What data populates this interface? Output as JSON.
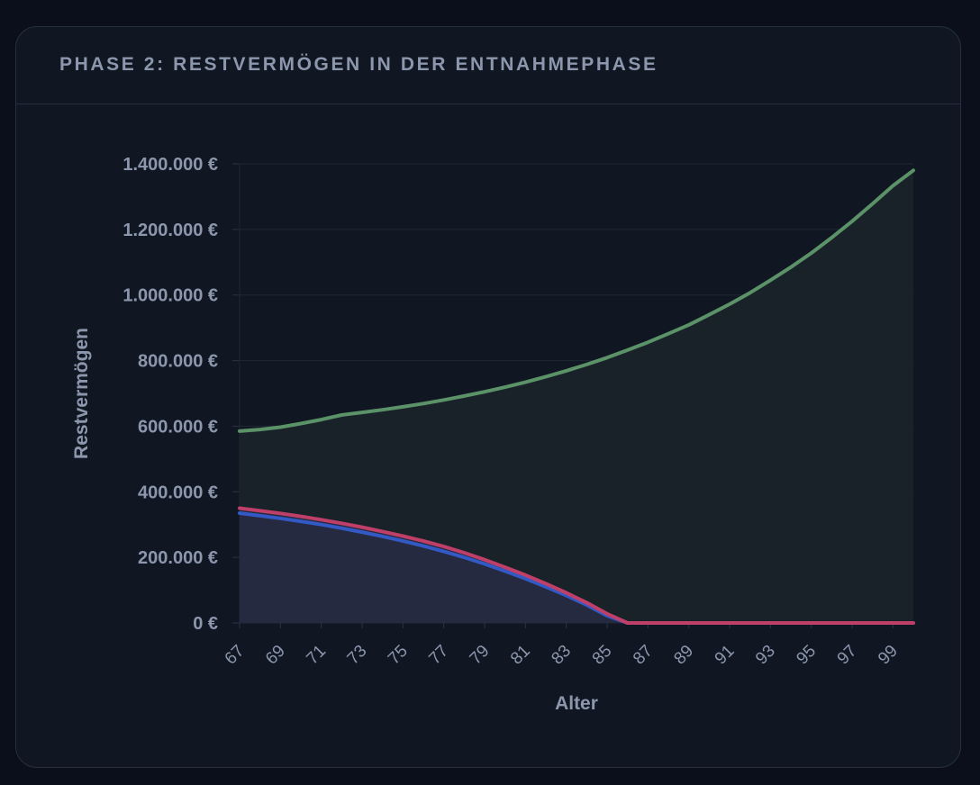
{
  "card": {
    "title": "PHASE 2: RESTVERMÖGEN IN DER ENTNAHMEPHASE"
  },
  "chart_data": {
    "type": "area",
    "title": "",
    "xlabel": "Alter",
    "ylabel": "Restvermögen",
    "xlim": [
      67,
      100
    ],
    "ylim": [
      0,
      1400000
    ],
    "y_ticks": [
      0,
      200000,
      400000,
      600000,
      800000,
      1000000,
      1200000,
      1400000
    ],
    "y_tick_labels": [
      "0 €",
      "200.000 €",
      "400.000 €",
      "600.000 €",
      "800.000 €",
      "1.000.000 €",
      "1.200.000 €",
      "1.400.000 €"
    ],
    "x_tick_labels": [
      "67",
      "69",
      "71",
      "73",
      "75",
      "77",
      "79",
      "81",
      "83",
      "85",
      "87",
      "89",
      "91",
      "93",
      "95",
      "97",
      "99"
    ],
    "grid": true,
    "legend": "none",
    "x": [
      67,
      68,
      69,
      70,
      71,
      72,
      73,
      74,
      75,
      76,
      77,
      78,
      79,
      80,
      81,
      82,
      83,
      84,
      85,
      86,
      87,
      88,
      89,
      90,
      91,
      92,
      93,
      94,
      95,
      96,
      97,
      98,
      99,
      100
    ],
    "series": [
      {
        "color": "#5b9268",
        "fill": "#1a2429",
        "values": [
          585000,
          590000,
          597000,
          608000,
          620000,
          634000,
          642000,
          650000,
          659000,
          669000,
          680000,
          692000,
          705000,
          719000,
          734000,
          751000,
          769000,
          788000,
          809000,
          832000,
          856000,
          882000,
          909000,
          940000,
          972000,
          1007000,
          1045000,
          1085000,
          1128000,
          1175000,
          1225000,
          1278000,
          1333000,
          1380000
        ]
      },
      {
        "color": "#3359c4",
        "fill": "#272a40",
        "values": [
          335000,
          327000,
          319000,
          310000,
          300000,
          289000,
          277000,
          264000,
          250000,
          235000,
          218000,
          200000,
          180000,
          158000,
          135000,
          110000,
          84000,
          55000,
          22000,
          0,
          0,
          0,
          0,
          0,
          0,
          0,
          0,
          0,
          0,
          0,
          0,
          0,
          0,
          0
        ]
      },
      {
        "color": "#bf3f68",
        "fill": "#272a40",
        "values": [
          350000,
          342000,
          334000,
          325000,
          315000,
          304000,
          292000,
          279000,
          265000,
          250000,
          233000,
          214000,
          193000,
          170000,
          146000,
          120000,
          92000,
          62000,
          28000,
          0,
          0,
          0,
          0,
          0,
          0,
          0,
          0,
          0,
          0,
          0,
          0,
          0,
          0,
          0
        ]
      }
    ]
  }
}
